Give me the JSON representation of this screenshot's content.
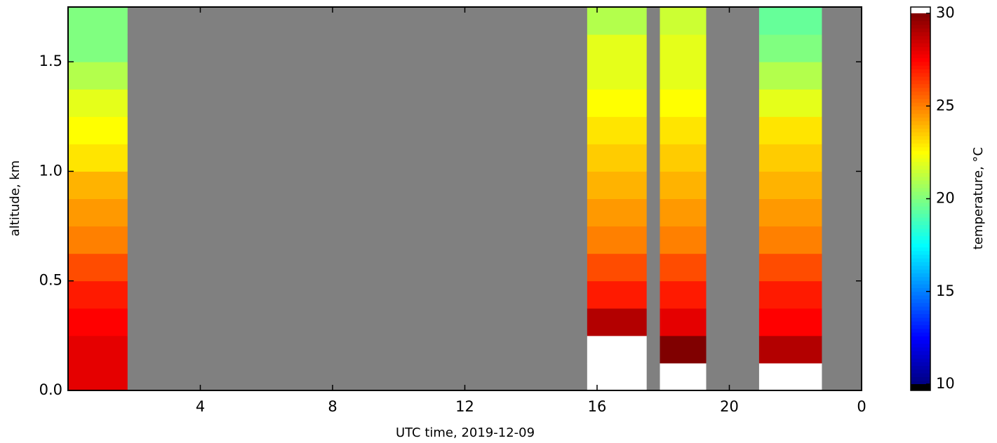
{
  "chart_data": {
    "type": "heatmap",
    "xlabel": "UTC time,  2019-12-09",
    "ylabel": "altitude, km",
    "colorbar_label": "temperature, °C",
    "x_edges": [
      0,
      1.8,
      15.7,
      17.5,
      17.9,
      19.3,
      20.9,
      22.8,
      23.6,
      24
    ],
    "y_edges": [
      0,
      0.125,
      0.25,
      0.375,
      0.5,
      0.625,
      0.75,
      0.875,
      1,
      1.125,
      1.25,
      1.375,
      1.5,
      1.625,
      1.75
    ],
    "z": [
      [
        28,
        28,
        27.5,
        27,
        26,
        25,
        24.5,
        24,
        23,
        22.5,
        22,
        21,
        20,
        20
      ],
      [
        null,
        null,
        null,
        null,
        null,
        null,
        null,
        null,
        null,
        null,
        null,
        null,
        null,
        null
      ],
      [
        31,
        31,
        29,
        27,
        26,
        25,
        24.5,
        24,
        23.5,
        23,
        22.5,
        22,
        22,
        21
      ],
      [
        null,
        null,
        null,
        null,
        null,
        null,
        null,
        null,
        null,
        null,
        null,
        null,
        null,
        null
      ],
      [
        31,
        30,
        28,
        27,
        26,
        25,
        24.5,
        24,
        23.5,
        23,
        22.5,
        22,
        22,
        21.5
      ],
      [
        null,
        null,
        null,
        null,
        null,
        null,
        null,
        null,
        null,
        null,
        null,
        null,
        null,
        null
      ],
      [
        31,
        29,
        27.5,
        27,
        26,
        25,
        24.5,
        24,
        23.5,
        23,
        22,
        21,
        20,
        19.5
      ],
      [
        null,
        null,
        null,
        null,
        null,
        null,
        null,
        null,
        null,
        null,
        null,
        null,
        null,
        null
      ],
      [
        null,
        null,
        null,
        null,
        null,
        null,
        null,
        null,
        null,
        null,
        null,
        null,
        null,
        null
      ]
    ],
    "xlim": [
      0,
      24
    ],
    "xticks": [
      4,
      8,
      12,
      16,
      20,
      {
        "value": 24,
        "label": "0"
      }
    ],
    "ylim": [
      0,
      1.75
    ],
    "yticks": [
      {
        "value": 0,
        "label": "0.0"
      },
      0.5,
      {
        "value": 1,
        "label": "1.0"
      },
      1.5
    ],
    "clim": [
      10,
      30
    ],
    "cticks": [
      10,
      15,
      20,
      25,
      30
    ],
    "colormap": "jet",
    "bad_color": "#808080",
    "over_color": "#ffffff",
    "under_color": "#000000"
  }
}
